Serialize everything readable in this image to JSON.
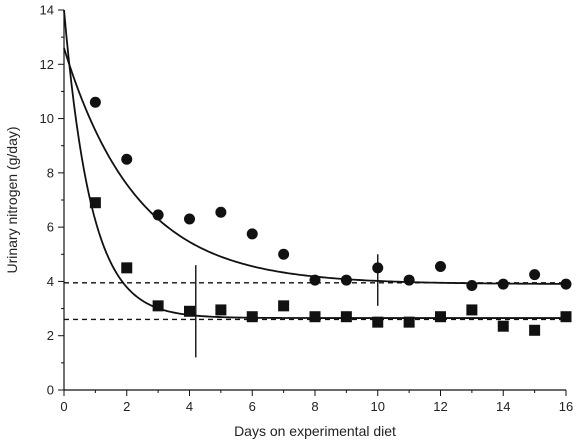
{
  "chart_data": {
    "type": "scatter",
    "xlabel": "Days on experimental diet",
    "ylabel": "Urinary nitrogen (g/day)",
    "xlim": [
      0,
      16
    ],
    "ylim": [
      0,
      14
    ],
    "x_ticks": [
      0,
      2,
      4,
      6,
      8,
      10,
      12,
      14,
      16
    ],
    "y_ticks": [
      0,
      2,
      4,
      6,
      8,
      10,
      12,
      14
    ],
    "grid": false,
    "series": [
      {
        "marker": "circle",
        "color": "#111111",
        "points": [
          [
            1,
            10.6
          ],
          [
            2,
            8.5
          ],
          [
            3,
            6.45
          ],
          [
            4,
            6.3
          ],
          [
            5,
            6.55
          ],
          [
            6,
            5.75
          ],
          [
            7,
            5.0
          ],
          [
            8,
            4.05
          ],
          [
            9,
            4.05
          ],
          [
            10,
            4.5
          ],
          [
            11,
            4.05
          ],
          [
            12,
            4.55
          ],
          [
            13,
            3.85
          ],
          [
            14,
            3.9
          ],
          [
            15,
            4.25
          ],
          [
            16,
            3.9
          ]
        ],
        "fit_curve": {
          "start": 12.6,
          "plateau": 3.9,
          "rate": 0.43,
          "x_range": [
            0,
            16
          ]
        },
        "plateau_line": {
          "y": 3.95,
          "style": "dashed"
        },
        "error_bar": {
          "x": 10,
          "low": 3.1,
          "high": 5.0
        }
      },
      {
        "marker": "square",
        "color": "#111111",
        "points": [
          [
            1,
            6.9
          ],
          [
            2,
            4.5
          ],
          [
            3,
            3.1
          ],
          [
            4,
            2.9
          ],
          [
            5,
            2.95
          ],
          [
            6,
            2.7
          ],
          [
            7,
            3.1
          ],
          [
            8,
            2.7
          ],
          [
            9,
            2.7
          ],
          [
            10,
            2.5
          ],
          [
            11,
            2.5
          ],
          [
            12,
            2.7
          ],
          [
            13,
            2.95
          ],
          [
            14,
            2.35
          ],
          [
            15,
            2.2
          ],
          [
            16,
            2.7
          ]
        ],
        "fit_curve": {
          "start": 14.0,
          "plateau": 2.65,
          "rate": 1.15,
          "x_range": [
            0,
            16
          ]
        },
        "plateau_line": {
          "y": 2.6,
          "style": "dashed"
        },
        "error_bar": {
          "x": 4.2,
          "low": 1.2,
          "high": 4.6
        }
      }
    ]
  }
}
